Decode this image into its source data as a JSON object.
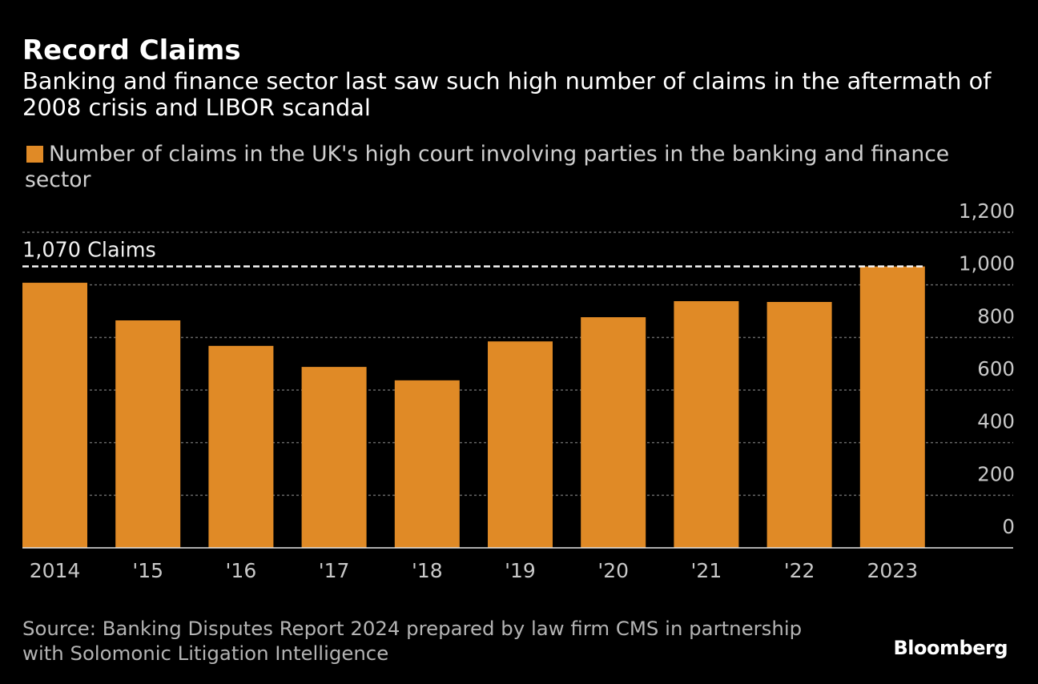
{
  "chart_data": {
    "type": "bar",
    "title": "Record Claims",
    "subtitle_lines": [
      "Banking and finance sector last saw such high number of claims in the aftermath of",
      "2008 crisis and LIBOR scandal"
    ],
    "legend": [
      {
        "label_lines": [
          "Number of claims in the UK's high court involving parties in the banking and finance",
          "sector"
        ]
      }
    ],
    "categories": [
      "2014",
      "'15",
      "'16",
      "'17",
      "'18",
      "'19",
      "'20",
      "'21",
      "'22",
      "2023"
    ],
    "series": [
      {
        "values": [
          1008,
          865,
          768,
          688,
          637,
          785,
          877,
          938,
          935,
          1070
        ],
        "color": "#E08A26"
      }
    ],
    "xlabel": "",
    "ylabel": "",
    "ylim": [
      0,
      1200
    ],
    "yticks": [
      0,
      200,
      400,
      600,
      800,
      1000,
      1200
    ],
    "ytick_labels": [
      "0",
      "200",
      "400",
      "600",
      "800",
      "1,000",
      "1,200"
    ],
    "grid": true,
    "annotation": {
      "label": "1,070 Claims",
      "value": 1070
    }
  },
  "footer": {
    "source_lines": [
      "Source: Banking Disputes Report 2024 prepared by law firm CMS in partnership",
      "with Solomonic Litigation Intelligence"
    ],
    "brand": "Bloomberg"
  },
  "colors": {
    "background": "#000000",
    "title": "#FFFFFF",
    "subtitle": "#FFFFFF",
    "legend_text": "#CFCFCF",
    "axis_text": "#C8C8C8",
    "gridline": "#666666",
    "baseline": "#E6E6E6",
    "annotation": "#F2F2F2",
    "source_text": "#B4B4B4",
    "brand": "#FFFFFF"
  }
}
